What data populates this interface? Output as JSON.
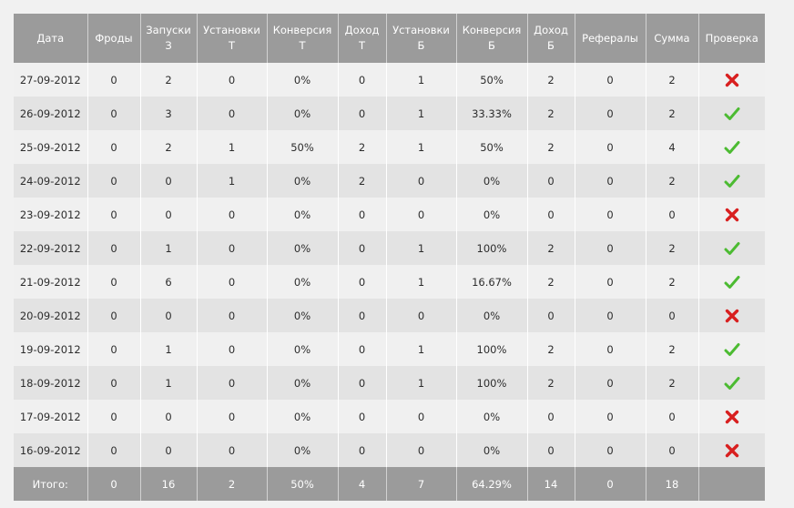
{
  "columns": [
    [
      "Дата"
    ],
    [
      "Фроды"
    ],
    [
      "Запуски",
      "З"
    ],
    [
      "Установки",
      "Т"
    ],
    [
      "Конверсия",
      "Т"
    ],
    [
      "Доход",
      "Т"
    ],
    [
      "Установки",
      "Б"
    ],
    [
      "Конверсия",
      "Б"
    ],
    [
      "Доход",
      "Б"
    ],
    [
      "Рефералы"
    ],
    [
      "Сумма"
    ],
    [
      "Проверка"
    ]
  ],
  "rows": [
    {
      "cells": [
        "27-09-2012",
        "0",
        "2",
        "0",
        "0%",
        "0",
        "1",
        "50%",
        "2",
        "0",
        "2"
      ],
      "check": false
    },
    {
      "cells": [
        "26-09-2012",
        "0",
        "3",
        "0",
        "0%",
        "0",
        "1",
        "33.33%",
        "2",
        "0",
        "2"
      ],
      "check": true
    },
    {
      "cells": [
        "25-09-2012",
        "0",
        "2",
        "1",
        "50%",
        "2",
        "1",
        "50%",
        "2",
        "0",
        "4"
      ],
      "check": true
    },
    {
      "cells": [
        "24-09-2012",
        "0",
        "0",
        "1",
        "0%",
        "2",
        "0",
        "0%",
        "0",
        "0",
        "2"
      ],
      "check": true
    },
    {
      "cells": [
        "23-09-2012",
        "0",
        "0",
        "0",
        "0%",
        "0",
        "0",
        "0%",
        "0",
        "0",
        "0"
      ],
      "check": false
    },
    {
      "cells": [
        "22-09-2012",
        "0",
        "1",
        "0",
        "0%",
        "0",
        "1",
        "100%",
        "2",
        "0",
        "2"
      ],
      "check": true
    },
    {
      "cells": [
        "21-09-2012",
        "0",
        "6",
        "0",
        "0%",
        "0",
        "1",
        "16.67%",
        "2",
        "0",
        "2"
      ],
      "check": true
    },
    {
      "cells": [
        "20-09-2012",
        "0",
        "0",
        "0",
        "0%",
        "0",
        "0",
        "0%",
        "0",
        "0",
        "0"
      ],
      "check": false
    },
    {
      "cells": [
        "19-09-2012",
        "0",
        "1",
        "0",
        "0%",
        "0",
        "1",
        "100%",
        "2",
        "0",
        "2"
      ],
      "check": true
    },
    {
      "cells": [
        "18-09-2012",
        "0",
        "1",
        "0",
        "0%",
        "0",
        "1",
        "100%",
        "2",
        "0",
        "2"
      ],
      "check": true
    },
    {
      "cells": [
        "17-09-2012",
        "0",
        "0",
        "0",
        "0%",
        "0",
        "0",
        "0%",
        "0",
        "0",
        "0"
      ],
      "check": false
    },
    {
      "cells": [
        "16-09-2012",
        "0",
        "0",
        "0",
        "0%",
        "0",
        "0",
        "0%",
        "0",
        "0",
        "0"
      ],
      "check": false
    }
  ],
  "totals": [
    "Итого:",
    "0",
    "16",
    "2",
    "50%",
    "4",
    "7",
    "64.29%",
    "14",
    "0",
    "18",
    ""
  ],
  "icons": {
    "pass": "check-icon",
    "fail": "cross-icon"
  },
  "colors": {
    "check": "#4cbb32",
    "cross": "#d81f1f"
  }
}
